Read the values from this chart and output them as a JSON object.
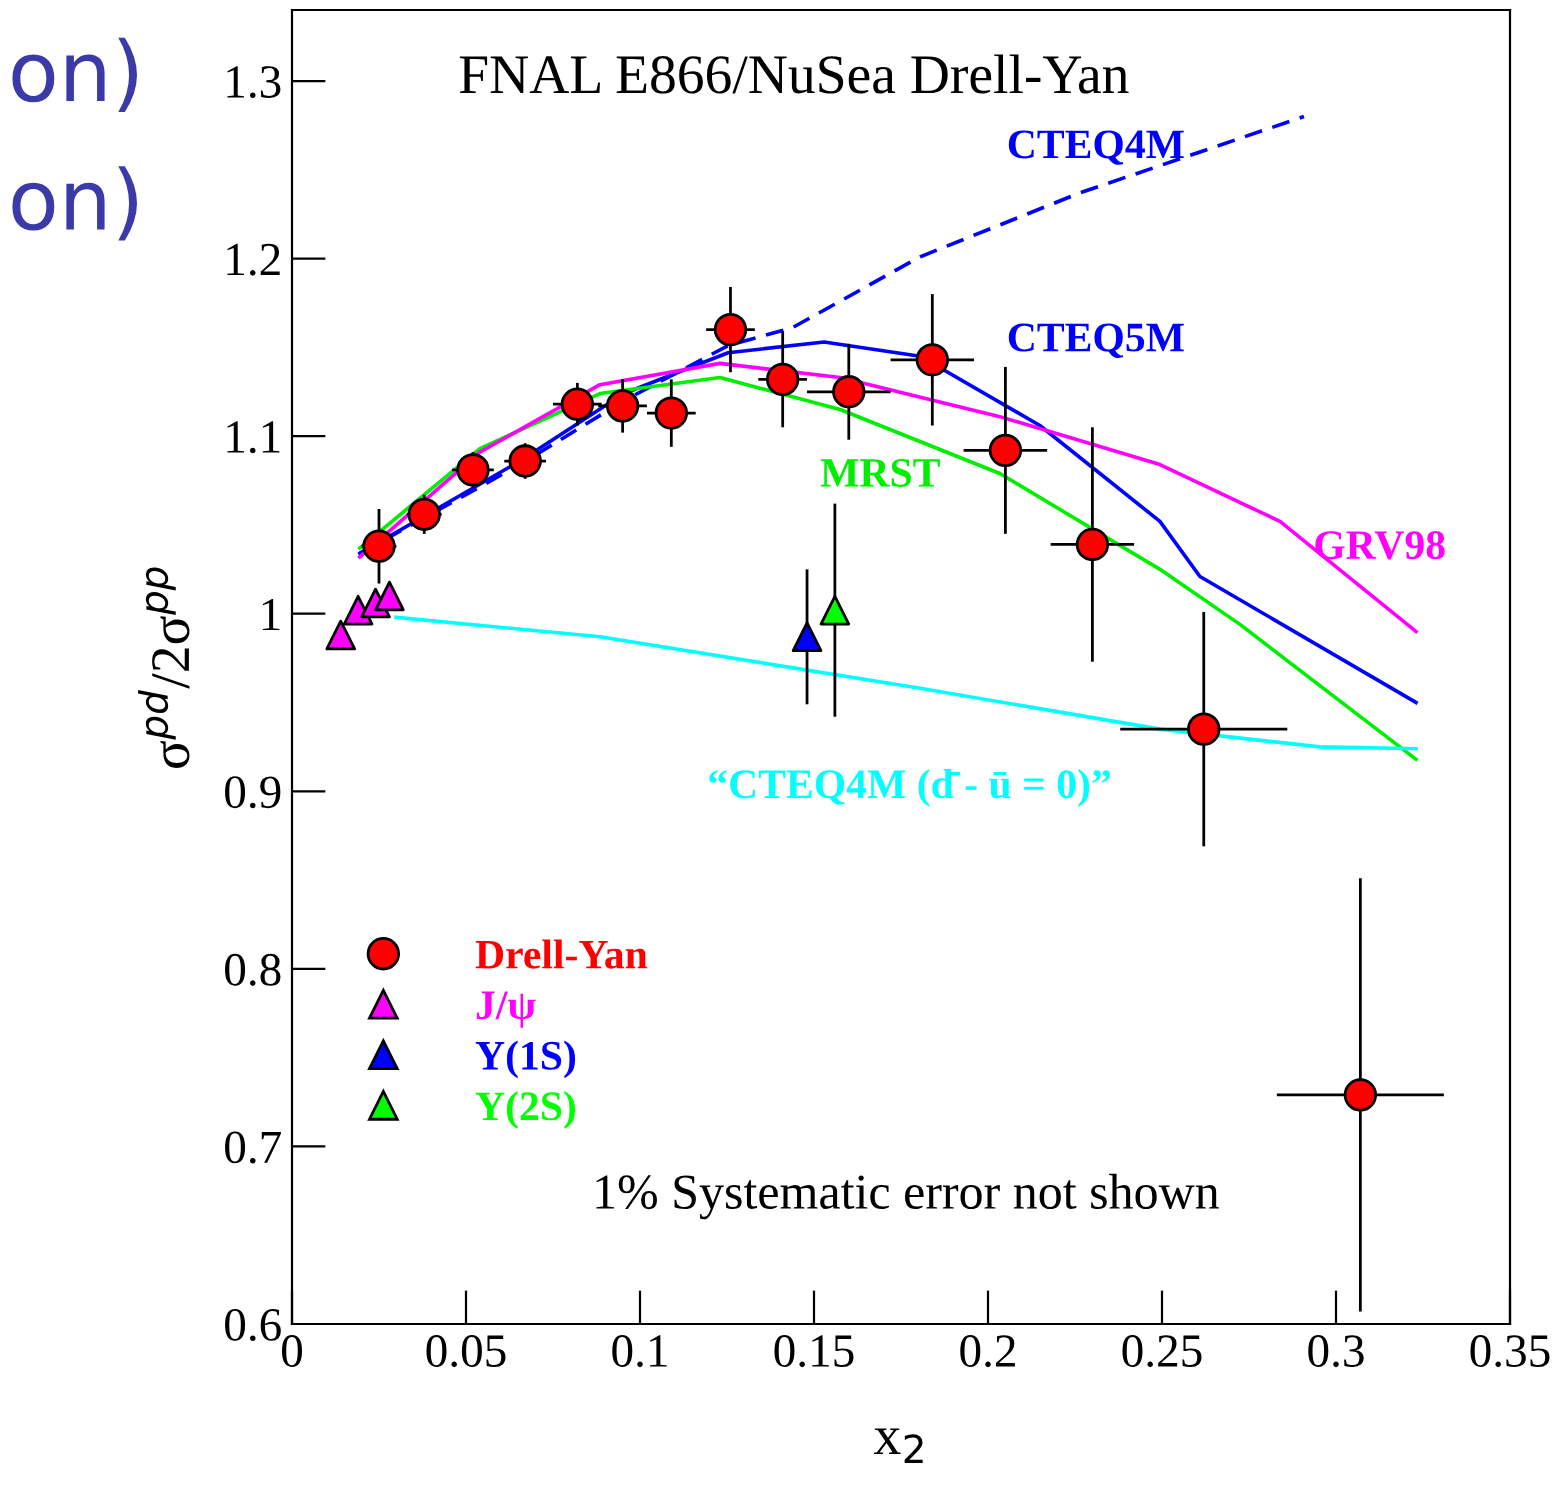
{
  "chart_data": {
    "type": "scatter",
    "title": "FNAL E866/NuSea Drell-Yan",
    "xlabel": "x$_{2}$",
    "ylabel": "σ$^{pd}$/2σ$^{pp}$",
    "xlim": [
      0,
      0.35
    ],
    "ylim": [
      0.6,
      1.34
    ],
    "xticks": [
      0,
      0.05,
      0.1,
      0.15,
      0.2,
      0.25,
      0.3,
      0.35
    ],
    "yticks": [
      0.6,
      0.7,
      0.8,
      0.9,
      1,
      1.1,
      1.2,
      1.3
    ],
    "grid": false,
    "legend": "bottom left",
    "annotations": [
      "1% Systematic error not shown",
      "on)",
      "on)"
    ],
    "series": [
      {
        "name": "Drell-Yan",
        "marker": "circle",
        "color": "#ff0000",
        "x": [
          0.025,
          0.038,
          0.052,
          0.067,
          0.082,
          0.095,
          0.109,
          0.126,
          0.141,
          0.16,
          0.184,
          0.205,
          0.23,
          0.262,
          0.307
        ],
        "values": [
          1.038,
          1.056,
          1.081,
          1.086,
          1.118,
          1.117,
          1.113,
          1.16,
          1.132,
          1.125,
          1.143,
          1.092,
          1.039,
          0.935,
          0.729
        ],
        "errors": [
          0.021,
          0.011,
          0.01,
          0.01,
          0.012,
          0.015,
          0.019,
          0.024,
          0.027,
          0.027,
          0.037,
          0.047,
          0.066,
          0.066,
          0.122
        ],
        "xerrors": [
          0.005,
          0.005,
          0.006,
          0.006,
          0.007,
          0.007,
          0.007,
          0.007,
          0.007,
          0.012,
          0.012,
          0.012,
          0.012,
          0.024,
          0.024
        ]
      },
      {
        "name": "J/ψ",
        "marker": "triangle",
        "color": "#ff00ff",
        "x": [
          0.014,
          0.019,
          0.024,
          0.028
        ],
        "values": [
          0.988,
          1.002,
          1.006,
          1.01
        ]
      },
      {
        "name": "Υ(1S)",
        "marker": "triangle",
        "color": "#0000ff",
        "x": [
          0.148
        ],
        "values": [
          0.987
        ],
        "errors": [
          0.038
        ]
      },
      {
        "name": "Υ(2S)",
        "marker": "triangle",
        "color": "#00ff00",
        "x": [
          0.156
        ],
        "values": [
          1.002
        ],
        "errors": [
          0.06
        ]
      },
      {
        "name": "CTEQ4M",
        "type": "line",
        "line_style": "dashed",
        "color": "#0000ff",
        "x": [
          0.0195,
          0.0655,
          0.0954,
          0.1253,
          0.1437,
          0.1805,
          0.2264,
          0.2908
        ],
        "values": [
          1.034,
          1.084,
          1.12,
          1.151,
          1.161,
          1.201,
          1.237,
          1.28
        ]
      },
      {
        "name": "CTEQ5M",
        "type": "line",
        "line_style": "solid",
        "color": "#0000ff",
        "x": [
          0.0195,
          0.0655,
          0.0954,
          0.1253,
          0.1529,
          0.1805,
          0.2149,
          0.2494,
          0.2609,
          0.323
        ],
        "values": [
          1.034,
          1.086,
          1.124,
          1.147,
          1.153,
          1.145,
          1.106,
          1.052,
          1.021,
          0.95
        ]
      },
      {
        "name": "MRST",
        "type": "line",
        "line_style": "solid",
        "color": "#00ee00",
        "x": [
          0.0195,
          0.054,
          0.0885,
          0.123,
          0.1575,
          0.2034,
          0.2494,
          0.2724,
          0.323
        ],
        "values": [
          1.037,
          1.093,
          1.124,
          1.133,
          1.115,
          1.079,
          1.025,
          0.994,
          0.918
        ]
      },
      {
        "name": "GRV98",
        "type": "line",
        "line_style": "solid",
        "color": "#ff00ff",
        "x": [
          0.0195,
          0.054,
          0.0885,
          0.123,
          0.1575,
          0.2034,
          0.2494,
          0.2839,
          0.323
        ],
        "values": [
          1.032,
          1.091,
          1.129,
          1.141,
          1.133,
          1.111,
          1.084,
          1.052,
          0.99
        ]
      },
      {
        "name": "“CTEQ4M (d̄ - ū = 0)”",
        "type": "line",
        "line_style": "solid",
        "color": "#00ffff",
        "x": [
          0.0299,
          0.0885,
          0.1805,
          0.2494,
          0.2954,
          0.323
        ],
        "values": [
          0.998,
          0.987,
          0.958,
          0.935,
          0.925,
          0.924
        ]
      }
    ]
  }
}
